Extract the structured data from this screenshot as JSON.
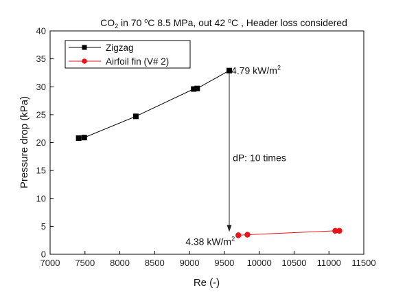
{
  "chart_data": {
    "type": "line",
    "title": {
      "co2_prefix": "CO",
      "co2_sub": "2",
      "temp_prefix": " in 70 ",
      "deg": "o",
      "temp_unit_and_pressure": "C 8.5 MPa, out 42 ",
      "deg2": "o",
      "suffix": "C , Header loss considered"
    },
    "xlabel": "Re (-)",
    "ylabel": "Pressure drop (kPa)",
    "xlim": [
      7000,
      11500
    ],
    "ylim": [
      0,
      40
    ],
    "x_ticks": [
      "7000",
      "7500",
      "8000",
      "8500",
      "9000",
      "9500",
      "10000",
      "10500",
      "11000",
      "11500"
    ],
    "y_ticks": [
      "0",
      "5",
      "10",
      "15",
      "20",
      "25",
      "30",
      "35",
      "40"
    ],
    "legend_position": "top-left",
    "series": [
      {
        "name": "Zigzag",
        "color": "#000000",
        "marker": "square",
        "x": [
          7410,
          7490,
          8230,
          9060,
          9110,
          9570
        ],
        "y": [
          20.8,
          20.9,
          24.7,
          29.6,
          29.7,
          32.9
        ]
      },
      {
        "name": "Airfoil fin (V# 2)",
        "color": "#e8141b",
        "marker": "circle",
        "x": [
          9700,
          9830,
          11090,
          11150
        ],
        "y": [
          3.4,
          3.5,
          4.2,
          4.2
        ]
      }
    ],
    "annotations": [
      {
        "text": "4.79 kW/m",
        "sup": "2",
        "x": 9600,
        "y": 32.9,
        "anchor": "start"
      },
      {
        "text": "4.38 kW/m",
        "sup": "2",
        "x": 9650,
        "y": 2.3,
        "anchor": "end"
      },
      {
        "text": "dP: 10 times",
        "x": 9620,
        "y": 17.3,
        "anchor": "start"
      }
    ],
    "arrow": {
      "from": [
        9570,
        32.9
      ],
      "to": [
        9570,
        3.4
      ]
    }
  }
}
